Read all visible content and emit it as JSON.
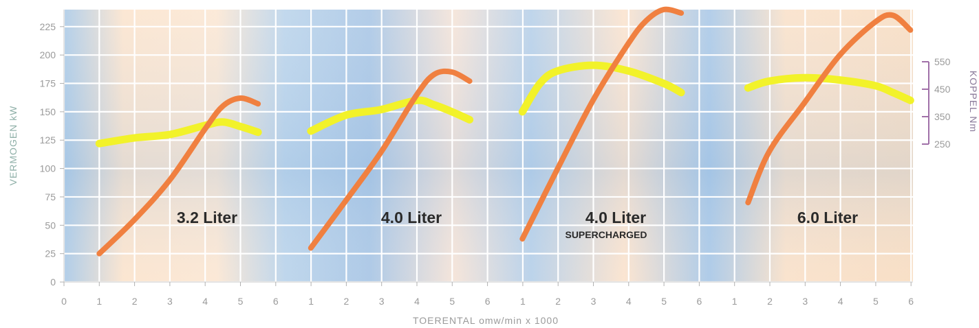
{
  "chart_data": {
    "type": "line",
    "xlabel": "TOERENTAL omw/min x 1000",
    "ylabel": "VERMOGEN kW",
    "y2label": "KOPPEL Nm",
    "ylim": [
      0,
      250
    ],
    "y_ticks": [
      0,
      25,
      50,
      75,
      100,
      125,
      150,
      175,
      200,
      225
    ],
    "y2_ticks": [
      550,
      450,
      350,
      250
    ],
    "x_tick_labels": [
      "0",
      "1",
      "2",
      "3",
      "4",
      "5",
      "6",
      "1",
      "2",
      "3",
      "4",
      "5",
      "6",
      "1",
      "2",
      "3",
      "4",
      "5",
      "6",
      "1",
      "2",
      "3",
      "4",
      "5",
      "6"
    ],
    "grid": true,
    "colors": {
      "power": "#f08040",
      "torque": "#f2f22a",
      "torque_bracket": "#a070a8"
    },
    "panels": [
      {
        "label": "3.2 Liter",
        "sublabel": "",
        "power": [
          [
            1,
            25
          ],
          [
            2,
            55
          ],
          [
            3,
            90
          ],
          [
            4,
            135
          ],
          [
            4.5,
            155
          ],
          [
            5,
            162
          ],
          [
            5.5,
            157
          ]
        ],
        "torque_kw": [
          [
            1,
            122
          ],
          [
            2,
            127
          ],
          [
            3,
            130
          ],
          [
            4,
            138
          ],
          [
            4.5,
            141
          ],
          [
            5,
            137
          ],
          [
            5.5,
            132
          ]
        ]
      },
      {
        "label": "4.0 Liter",
        "sublabel": "",
        "power": [
          [
            1,
            30
          ],
          [
            2,
            72
          ],
          [
            3,
            115
          ],
          [
            4,
            165
          ],
          [
            4.5,
            183
          ],
          [
            5,
            185
          ],
          [
            5.5,
            177
          ]
        ],
        "torque_kw": [
          [
            1,
            133
          ],
          [
            2,
            147
          ],
          [
            3,
            152
          ],
          [
            4,
            160
          ],
          [
            4.5,
            156
          ],
          [
            5,
            150
          ],
          [
            5.5,
            143
          ]
        ]
      },
      {
        "label": "4.0 Liter",
        "sublabel": "SUPERCHARGED",
        "power": [
          [
            1,
            38
          ],
          [
            2,
            100
          ],
          [
            3,
            160
          ],
          [
            4,
            210
          ],
          [
            4.5,
            230
          ],
          [
            5,
            240
          ],
          [
            5.5,
            237
          ]
        ],
        "torque_kw": [
          [
            1,
            150
          ],
          [
            1.5,
            175
          ],
          [
            2,
            186
          ],
          [
            3,
            191
          ],
          [
            4,
            186
          ],
          [
            5,
            175
          ],
          [
            5.5,
            167
          ]
        ]
      },
      {
        "label": "6.0 Liter",
        "sublabel": "",
        "power": [
          [
            1.4,
            70
          ],
          [
            2,
            115
          ],
          [
            3,
            158
          ],
          [
            4,
            200
          ],
          [
            5,
            229
          ],
          [
            5.5,
            235
          ],
          [
            6,
            222
          ]
        ],
        "torque_kw": [
          [
            1.4,
            171
          ],
          [
            2,
            177
          ],
          [
            3,
            180
          ],
          [
            4,
            178
          ],
          [
            5,
            173
          ],
          [
            5.5,
            167
          ],
          [
            6,
            160
          ]
        ]
      }
    ]
  }
}
